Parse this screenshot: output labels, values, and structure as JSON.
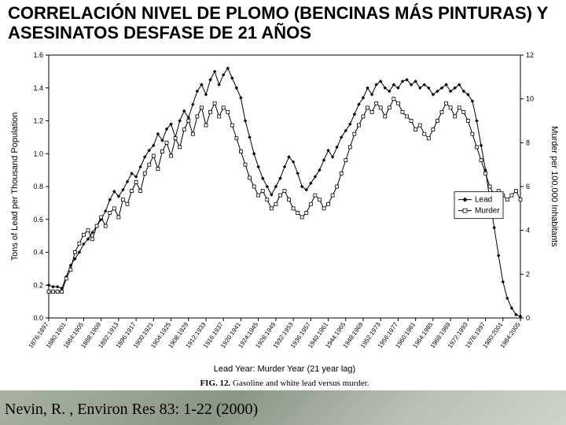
{
  "title": "CORRELACIÓN NIVEL DE PLOMO (BENCINAS MÁS PINTURAS) Y ASESINATOS DESFASE DE 21 AÑOS",
  "citation": "Nevin, R. , Environ Res 83: 1-22 (2000)",
  "chart": {
    "type": "line-dual-axis",
    "background_color": "#ffffff",
    "border_color": "#000000",
    "plot_background": "#ffffff",
    "grid": false,
    "y_left": {
      "title": "Tons of Lead per Thousand Population",
      "min": 0.0,
      "max": 1.6,
      "step": 0.2,
      "ticks": [
        "0.0",
        "0.2",
        "0.4",
        "0.6",
        "0.8",
        "1.0",
        "1.2",
        "1.4",
        "1.6"
      ],
      "fontsize": 9,
      "title_fontsize": 11
    },
    "y_right": {
      "title": "Murder per 100,000 Inhabitants",
      "min": 0,
      "max": 12,
      "step": 2,
      "ticks": [
        "0",
        "2",
        "4",
        "6",
        "8",
        "10",
        "12"
      ],
      "fontsize": 9,
      "title_fontsize": 11
    },
    "x": {
      "title": "Lead Year: Murder Year (21 year lag)",
      "fontsize": 11,
      "label_fontsize": 8,
      "labels": [
        "1876:1897",
        "1880:1901",
        "1884:1905",
        "1888:1909",
        "1892:1913",
        "1896:1917",
        "1900:1921",
        "1904:1925",
        "1908:1929",
        "1912:1933",
        "1916:1937",
        "1920:1941",
        "1924:1945",
        "1928:1949",
        "1932:1953",
        "1936:1957",
        "1940:1961",
        "1944:1965",
        "1948:1969",
        "1952:1973",
        "1956:1977",
        "1960:1981",
        "1964:1985",
        "1968:1989",
        "1972:1993",
        "1976:1997",
        "1980:2001",
        "1984:2005"
      ]
    },
    "caption": "FIG. 12.   Gasoline and white lead versus murder.",
    "legend": {
      "position": "inside-right",
      "items": [
        {
          "label": "Lead",
          "marker": "diamond",
          "line": true
        },
        {
          "label": "Murder",
          "marker": "square",
          "line": true
        }
      ],
      "border_color": "#000000",
      "bg_color": "#ffffff",
      "fontsize": 10
    },
    "series": [
      {
        "name": "Lead",
        "axis": "left",
        "color": "#000000",
        "line_width": 1,
        "marker": "diamond",
        "marker_size": 4,
        "data": [
          0.2,
          0.19,
          0.19,
          0.18,
          0.25,
          0.32,
          0.36,
          0.4,
          0.45,
          0.48,
          0.52,
          0.56,
          0.6,
          0.65,
          0.72,
          0.77,
          0.74,
          0.78,
          0.83,
          0.88,
          0.86,
          0.92,
          0.98,
          1.02,
          1.05,
          1.12,
          1.08,
          1.15,
          1.18,
          1.1,
          1.2,
          1.26,
          1.22,
          1.3,
          1.38,
          1.42,
          1.36,
          1.45,
          1.5,
          1.42,
          1.48,
          1.52,
          1.46,
          1.4,
          1.34,
          1.2,
          1.1,
          1.0,
          0.92,
          0.85,
          0.8,
          0.75,
          0.8,
          0.85,
          0.92,
          0.98,
          0.95,
          0.88,
          0.8,
          0.78,
          0.82,
          0.86,
          0.9,
          0.96,
          1.02,
          0.98,
          1.04,
          1.1,
          1.14,
          1.18,
          1.24,
          1.3,
          1.34,
          1.4,
          1.36,
          1.42,
          1.44,
          1.4,
          1.38,
          1.42,
          1.4,
          1.44,
          1.45,
          1.42,
          1.44,
          1.4,
          1.42,
          1.4,
          1.36,
          1.38,
          1.4,
          1.42,
          1.38,
          1.4,
          1.42,
          1.38,
          1.36,
          1.32,
          1.2,
          1.05,
          0.9,
          0.72,
          0.55,
          0.38,
          0.22,
          0.12,
          0.06,
          0.02,
          0.01
        ]
      },
      {
        "name": "Murder",
        "axis": "right",
        "color": "#000000",
        "line_width": 1,
        "marker": "square",
        "marker_size": 4,
        "data": [
          1.2,
          1.2,
          1.2,
          1.2,
          1.8,
          2.2,
          3.0,
          3.4,
          3.8,
          4.0,
          3.6,
          4.2,
          4.6,
          4.2,
          4.8,
          5.0,
          4.6,
          5.4,
          5.2,
          5.8,
          6.2,
          5.8,
          6.6,
          7.0,
          7.4,
          6.8,
          7.6,
          8.0,
          7.4,
          8.2,
          7.8,
          8.6,
          9.0,
          8.4,
          9.2,
          9.6,
          8.8,
          9.4,
          9.8,
          9.2,
          9.6,
          9.4,
          8.8,
          8.2,
          7.6,
          7.0,
          6.4,
          6.0,
          5.6,
          5.8,
          5.4,
          5.0,
          5.2,
          5.6,
          5.8,
          5.4,
          5.0,
          4.8,
          4.6,
          4.8,
          5.2,
          5.6,
          5.4,
          5.0,
          5.2,
          5.6,
          6.0,
          6.6,
          7.2,
          7.8,
          8.4,
          8.8,
          9.2,
          9.6,
          9.4,
          9.8,
          9.6,
          9.2,
          9.6,
          10.0,
          9.8,
          9.4,
          9.2,
          9.0,
          8.6,
          8.8,
          8.4,
          8.2,
          8.6,
          9.0,
          9.4,
          9.8,
          9.6,
          9.2,
          9.6,
          9.4,
          9.0,
          8.4,
          7.8,
          7.2,
          6.6,
          6.0,
          5.6,
          5.8,
          5.6,
          5.4,
          5.6,
          5.8,
          5.4
        ]
      }
    ]
  }
}
